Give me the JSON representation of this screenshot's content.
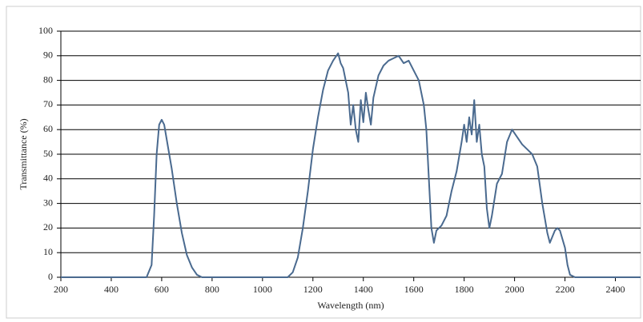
{
  "chart_data": {
    "type": "line",
    "x_label": "Wavelength (nm)",
    "y_label": "Transmittance (%)",
    "x": [
      200,
      540,
      560,
      570,
      580,
      590,
      600,
      610,
      620,
      640,
      660,
      680,
      700,
      720,
      740,
      760,
      1100,
      1120,
      1140,
      1160,
      1180,
      1200,
      1220,
      1240,
      1260,
      1280,
      1300,
      1310,
      1320,
      1340,
      1350,
      1360,
      1370,
      1380,
      1390,
      1400,
      1410,
      1420,
      1430,
      1440,
      1460,
      1480,
      1500,
      1520,
      1540,
      1560,
      1580,
      1600,
      1620,
      1640,
      1650,
      1660,
      1670,
      1680,
      1690,
      1710,
      1730,
      1750,
      1770,
      1790,
      1800,
      1810,
      1820,
      1830,
      1840,
      1850,
      1860,
      1870,
      1880,
      1890,
      1900,
      1910,
      1930,
      1950,
      1970,
      1990,
      2010,
      2030,
      2050,
      2070,
      2090,
      2110,
      2130,
      2140,
      2160,
      2170,
      2180,
      2200,
      2210,
      2220,
      2240,
      2500
    ],
    "series": [
      {
        "name": "Transmittance",
        "color": "#4a6a8f",
        "values": [
          0,
          0,
          5,
          25,
          50,
          62,
          64,
          62,
          56,
          44,
          30,
          18,
          9,
          4,
          1,
          0,
          0,
          2,
          8,
          20,
          35,
          52,
          65,
          76,
          84,
          88,
          91,
          87,
          85,
          75,
          62,
          70,
          60,
          55,
          72,
          63,
          75,
          68,
          62,
          73,
          82,
          86,
          88,
          89,
          90,
          87,
          88,
          84,
          80,
          70,
          60,
          40,
          20,
          14,
          19,
          21,
          25,
          35,
          43,
          55,
          62,
          55,
          65,
          58,
          72,
          55,
          62,
          50,
          45,
          28,
          20,
          25,
          38,
          42,
          55,
          60,
          57,
          54,
          52,
          50,
          45,
          30,
          18,
          14,
          19,
          20,
          19,
          12,
          5,
          1,
          0,
          0
        ]
      }
    ],
    "xlim": [
      200,
      2500
    ],
    "xticks": [
      200,
      400,
      600,
      800,
      1000,
      1200,
      1400,
      1600,
      1800,
      2000,
      2200,
      2400
    ],
    "ylim": [
      0,
      100
    ],
    "yticks": [
      0,
      10,
      20,
      30,
      40,
      50,
      60,
      70,
      80,
      90,
      100
    ],
    "grid": true
  }
}
